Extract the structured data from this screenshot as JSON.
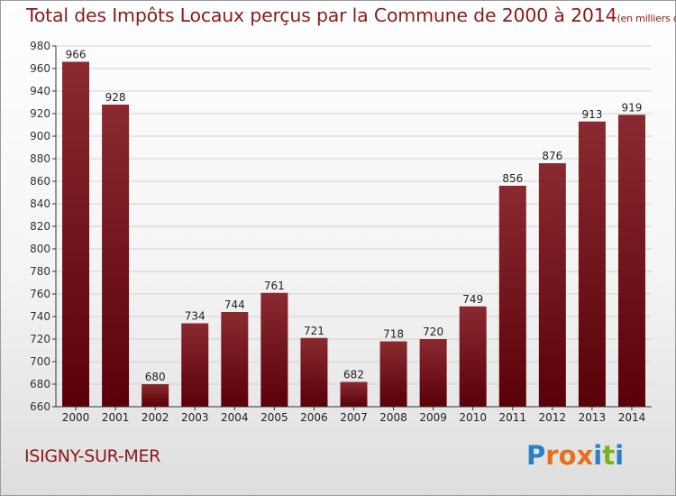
{
  "title": "Total des Impôts Locaux perçus par la Commune de 2000 à 2014",
  "title_unit": "(en milliers d'€)",
  "commune": "ISIGNY-SUR-MER",
  "logo": {
    "text": "Proxiti",
    "letters": [
      "P",
      "r",
      "o",
      "x",
      "i",
      "t",
      "i"
    ],
    "colors": [
      "#2b7fc4",
      "#e8701a",
      "#e8701a",
      "#e8701a",
      "#2b7fc4",
      "#7ab317",
      "#2b7fc4"
    ]
  },
  "colors": {
    "bar_top": "#8a2a30",
    "bar_bottom": "#5a0008",
    "title": "#8b1a1a",
    "grid": "#d2d2d2"
  },
  "chart_data": {
    "type": "bar",
    "categories": [
      "2000",
      "2001",
      "2002",
      "2003",
      "2004",
      "2005",
      "2006",
      "2007",
      "2008",
      "2009",
      "2010",
      "2011",
      "2012",
      "2013",
      "2014"
    ],
    "values": [
      966,
      928,
      680,
      734,
      744,
      761,
      721,
      682,
      718,
      720,
      749,
      856,
      876,
      913,
      919
    ],
    "ylim": [
      660,
      980
    ],
    "yticks": [
      660,
      680,
      700,
      720,
      740,
      760,
      780,
      800,
      820,
      840,
      860,
      880,
      900,
      920,
      940,
      960,
      980
    ],
    "grid": true,
    "legend": "none",
    "xlabel": "",
    "ylabel": ""
  }
}
